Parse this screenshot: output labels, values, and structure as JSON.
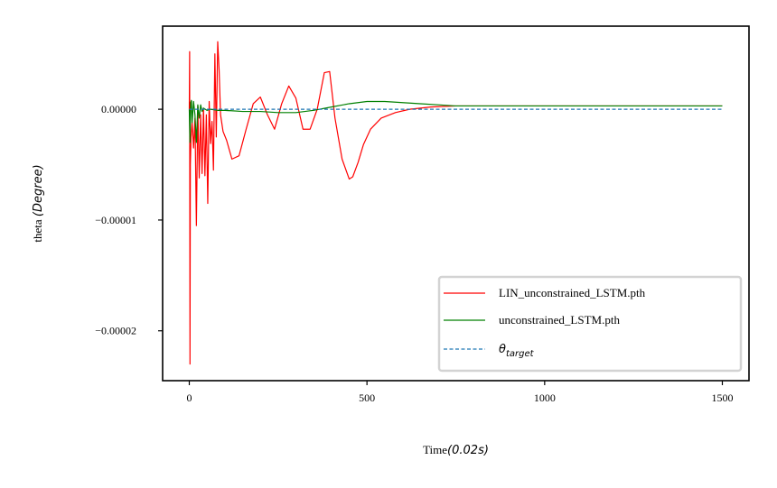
{
  "chart_data": {
    "type": "line",
    "title": "",
    "xlabel_text": "Time",
    "xlabel_math": "(0.02s)",
    "ylabel_text": "theta ",
    "ylabel_math": "(Degree)",
    "xlim": [
      -75,
      1575
    ],
    "ylim": [
      -2.45e-05,
      7.5e-06
    ],
    "xticks": [
      {
        "value": 0,
        "label": "0"
      },
      {
        "value": 500,
        "label": "500"
      },
      {
        "value": 1000,
        "label": "1000"
      },
      {
        "value": 1500,
        "label": "1500"
      }
    ],
    "yticks": [
      {
        "value": 0,
        "label": "0.00000"
      },
      {
        "value": -1e-05,
        "label": "−0.00001"
      },
      {
        "value": -2e-05,
        "label": "−0.00002"
      }
    ],
    "legend_position": "lower-right",
    "series": [
      {
        "name": "LIN_unconstrained_LSTM.pth",
        "color": "#ff0000",
        "dash": "solid",
        "x": [
          0,
          1,
          2,
          3,
          5,
          8,
          12,
          16,
          20,
          24,
          28,
          32,
          36,
          40,
          44,
          48,
          52,
          56,
          60,
          64,
          68,
          72,
          76,
          80,
          84,
          88,
          95,
          105,
          120,
          140,
          160,
          180,
          200,
          220,
          240,
          260,
          280,
          300,
          320,
          340,
          360,
          380,
          395,
          410,
          430,
          450,
          460,
          475,
          490,
          510,
          540,
          580,
          620,
          680,
          750,
          800,
          900,
          1000,
          1200,
          1500
        ],
        "y": [
          0,
          5.2e-06,
          -2.3e-05,
          -5e-06,
          -2.5e-06,
          -1.2e-06,
          -3.5e-06,
          -8e-07,
          -1.05e-05,
          3e-07,
          -6.2e-06,
          -5e-07,
          -5.8e-06,
          1e-07,
          -6e-06,
          -5e-07,
          -8.5e-06,
          7e-07,
          -3.1e-06,
          -1.1e-06,
          -5.5e-06,
          5e-06,
          -2.5e-06,
          6.1e-06,
          3.5e-06,
          -5e-07,
          -2e-06,
          -2.8e-06,
          -4.5e-06,
          -4.2e-06,
          -1.8e-06,
          5e-07,
          1.1e-06,
          -5e-07,
          -1.8e-06,
          5e-07,
          2.1e-06,
          1e-06,
          -1.8e-06,
          -1.8e-06,
          0,
          3.3e-06,
          3.4e-06,
          -8e-07,
          -4.5e-06,
          -6.3e-06,
          -6.1e-06,
          -4.8e-06,
          -3.2e-06,
          -1.8e-06,
          -8e-07,
          -3e-07,
          0,
          2e-07,
          3e-07,
          3e-07,
          3e-07,
          3e-07,
          3e-07,
          3e-07
        ]
      },
      {
        "name": "unconstrained_LSTM.pth",
        "color": "#008000",
        "dash": "solid",
        "x": [
          0,
          2,
          4,
          6,
          8,
          12,
          16,
          20,
          24,
          28,
          32,
          36,
          40,
          50,
          60,
          80,
          100,
          150,
          200,
          250,
          300,
          350,
          400,
          450,
          500,
          520,
          550,
          600,
          650,
          700,
          750,
          800,
          900,
          1000,
          1200,
          1500
        ],
        "y": [
          0,
          -3e-06,
          6e-07,
          8e-07,
          -1.2e-06,
          7e-07,
          -5e-07,
          -3e-06,
          4e-07,
          -8e-07,
          4e-07,
          -2e-07,
          1e-07,
          -1e-07,
          0,
          -1e-07,
          -1e-07,
          -2e-07,
          -2e-07,
          -3e-07,
          -3e-07,
          -1e-07,
          2e-07,
          5e-07,
          7e-07,
          7e-07,
          7e-07,
          6e-07,
          5e-07,
          4e-07,
          3e-07,
          3e-07,
          3e-07,
          3e-07,
          3e-07,
          3e-07
        ]
      },
      {
        "name": "θ",
        "name_subscript": "target",
        "color": "#1f77b4",
        "dash": "dashed",
        "x": [
          0,
          1500
        ],
        "y": [
          0,
          0
        ]
      }
    ]
  }
}
